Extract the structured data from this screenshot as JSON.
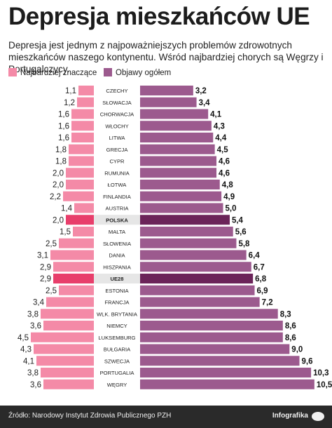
{
  "chart_data": {
    "type": "bar",
    "title": "Depresja mieszkańców UE",
    "subtitle": "Depresja jest jednym z najpoważniejszych problemów zdrowotnych mieszkańców naszego kontynentu. Wśród najbardziej chorych są Węgrzy i Portugalczycy.",
    "categories": [
      "CZECHY",
      "SŁOWACJA",
      "CHORWACJA",
      "WŁOCHY",
      "LITWA",
      "GRECJA",
      "CYPR",
      "RUMUNIA",
      "ŁOTWA",
      "FINLANDIA",
      "AUSTRIA",
      "POLSKA",
      "MALTA",
      "SŁOWENIA",
      "DANIA",
      "HISZPANIA",
      "UE28",
      "ESTONIA",
      "FRANCJA",
      "WLK. BRYTANIA",
      "NIEMCY",
      "LUKSEMBURG",
      "BUŁGARIA",
      "SZWECJA",
      "PORTUGALIA",
      "WĘGRY"
    ],
    "highlighted_categories": [
      "POLSKA",
      "UE28"
    ],
    "series": [
      {
        "name": "Najbardziej znaczące",
        "side": "left",
        "color": "#f48aa7",
        "highlight_color": "#e83e6b",
        "values": [
          1.1,
          1.2,
          1.6,
          1.6,
          1.6,
          1.8,
          1.8,
          2.0,
          2.0,
          2.2,
          1.4,
          2.0,
          1.5,
          2.5,
          3.1,
          2.9,
          2.9,
          2.5,
          3.4,
          3.8,
          3.6,
          4.5,
          4.3,
          4.1,
          3.8,
          3.6
        ]
      },
      {
        "name": "Objawy ogółem",
        "side": "right",
        "color": "#9c5a8e",
        "highlight_color": "#6b2459",
        "values": [
          3.2,
          3.4,
          4.1,
          4.3,
          4.4,
          4.5,
          4.6,
          4.6,
          4.8,
          4.9,
          5.0,
          5.4,
          5.6,
          5.8,
          6.4,
          6.7,
          6.8,
          6.9,
          7.2,
          8.3,
          8.6,
          8.6,
          9.0,
          9.6,
          10.3,
          10.5
        ]
      }
    ]
  },
  "footer": {
    "source": "Źródło: Narodowy Instytut Zdrowia Publicznego PZH",
    "brand": "Infografika"
  }
}
